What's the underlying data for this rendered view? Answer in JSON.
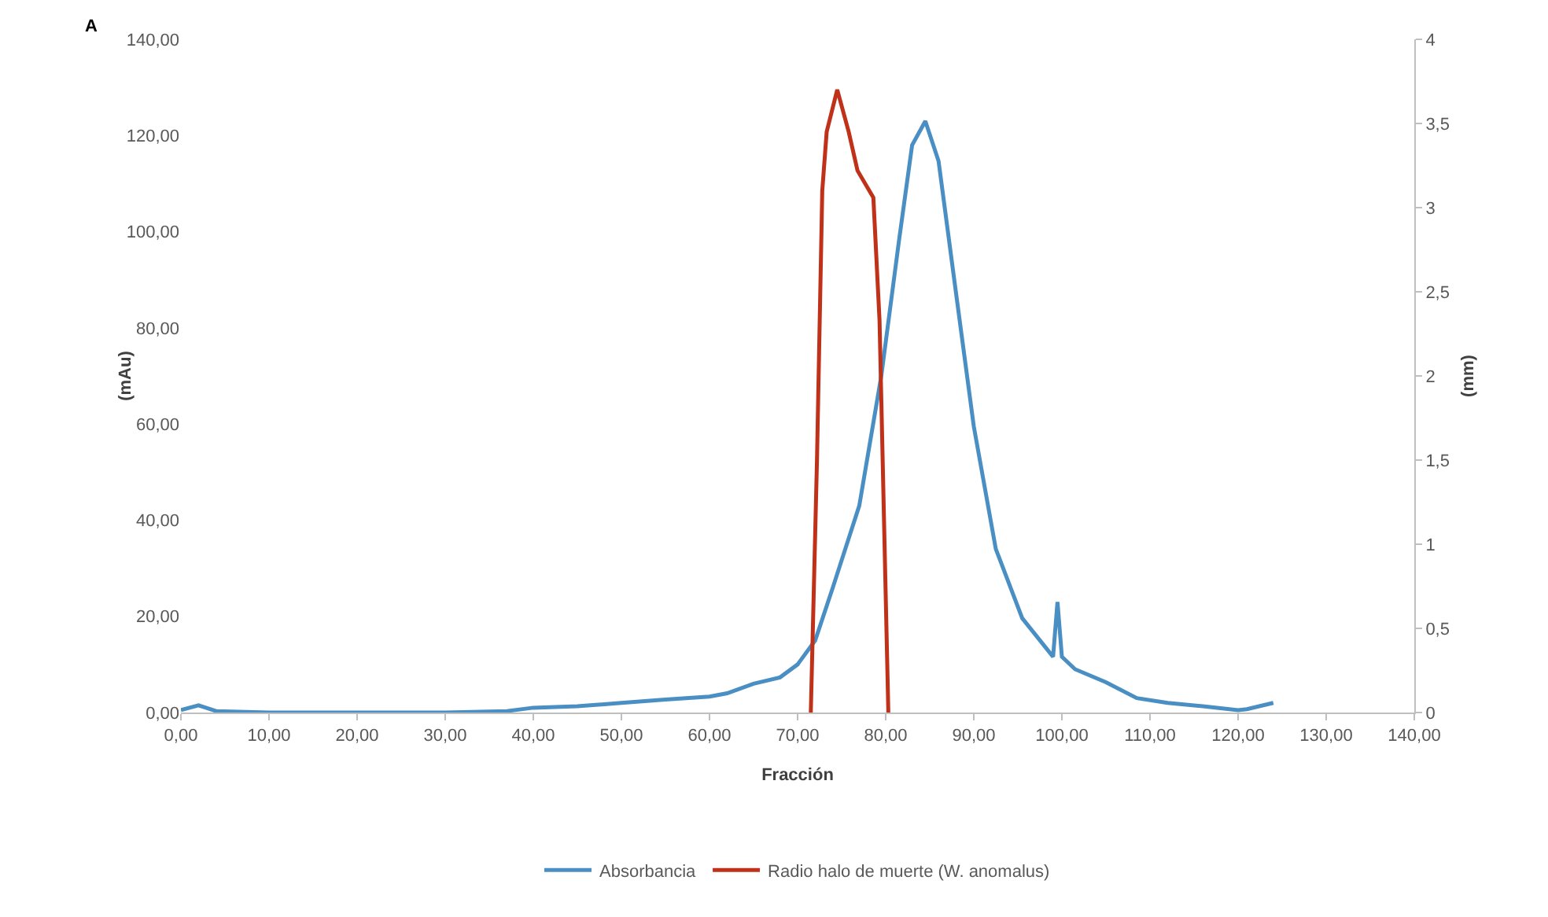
{
  "chart_data": {
    "type": "line",
    "xlabel": "Fracción",
    "ylabel": "(mAu)",
    "y2label": "(mm)",
    "annotations": [
      "A"
    ],
    "xlim": [
      0,
      140
    ],
    "xticks": [
      {
        "value": 0,
        "label": "0,00"
      },
      {
        "value": 10,
        "label": "10,00"
      },
      {
        "value": 20,
        "label": "20,00"
      },
      {
        "value": 30,
        "label": "30,00"
      },
      {
        "value": 40,
        "label": "40,00"
      },
      {
        "value": 50,
        "label": "50,00"
      },
      {
        "value": 60,
        "label": "60,00"
      },
      {
        "value": 70,
        "label": "70,00"
      },
      {
        "value": 80,
        "label": "80,00"
      },
      {
        "value": 90,
        "label": "90,00"
      },
      {
        "value": 100,
        "label": "100,00"
      },
      {
        "value": 110,
        "label": "110,00"
      },
      {
        "value": 120,
        "label": "120,00"
      },
      {
        "value": 130,
        "label": "130,00"
      },
      {
        "value": 140,
        "label": "140,00"
      }
    ],
    "ylim": [
      0,
      140
    ],
    "yticks": [
      {
        "value": 0,
        "label": "0,00"
      },
      {
        "value": 20,
        "label": "20,00"
      },
      {
        "value": 40,
        "label": "40,00"
      },
      {
        "value": 60,
        "label": "60,00"
      },
      {
        "value": 80,
        "label": "80,00"
      },
      {
        "value": 100,
        "label": "100,00"
      },
      {
        "value": 120,
        "label": "120,00"
      },
      {
        "value": 140,
        "label": "140,00"
      }
    ],
    "y2lim": [
      0,
      4
    ],
    "y2ticks": [
      0,
      {
        "value": 0.5,
        "label": "0,5"
      },
      1,
      {
        "value": 1.5,
        "label": "1,5"
      },
      2,
      {
        "value": 2.5,
        "label": "2,5"
      },
      3,
      {
        "value": 3.5,
        "label": "3,5"
      },
      4
    ],
    "grid": false,
    "legend": "bottom",
    "marker": "none",
    "line_style": "solid",
    "series": [
      {
        "name": "Absorbancia",
        "color": "#4a8fc4",
        "x": [
          0,
          2,
          4,
          10,
          20,
          30,
          37,
          40,
          45,
          50,
          55,
          60,
          62,
          65,
          68,
          70,
          72,
          74,
          77,
          79.5,
          81.5,
          83,
          84.5,
          86,
          88,
          90,
          92.5,
          95.5,
          99,
          99.5,
          100,
          101.5,
          105,
          108.5,
          112,
          116,
          120,
          121,
          124
        ],
        "values": [
          0.5,
          1.5,
          0.3,
          0,
          0,
          0,
          0.3,
          1,
          1.3,
          2,
          2.7,
          3.3,
          4,
          6,
          7.3,
          10,
          15,
          26,
          43,
          70,
          98,
          118,
          123,
          114.7,
          87,
          59.5,
          34,
          19.6,
          11.6,
          23,
          11.6,
          9,
          6.3,
          3,
          2,
          1.3,
          0.5,
          0.7,
          2
        ]
      },
      {
        "name": "Radio halo de muerte (W. anomalus)",
        "color": "#c0311a",
        "axis": "y2",
        "x": [
          71.5,
          72.2,
          72.8,
          73.3,
          74.5,
          75.8,
          76.8,
          78.6,
          79.3,
          80.3
        ],
        "values": [
          0,
          1.5,
          3.1,
          3.45,
          3.7,
          3.45,
          3.22,
          3.06,
          2.33,
          0
        ]
      }
    ]
  }
}
